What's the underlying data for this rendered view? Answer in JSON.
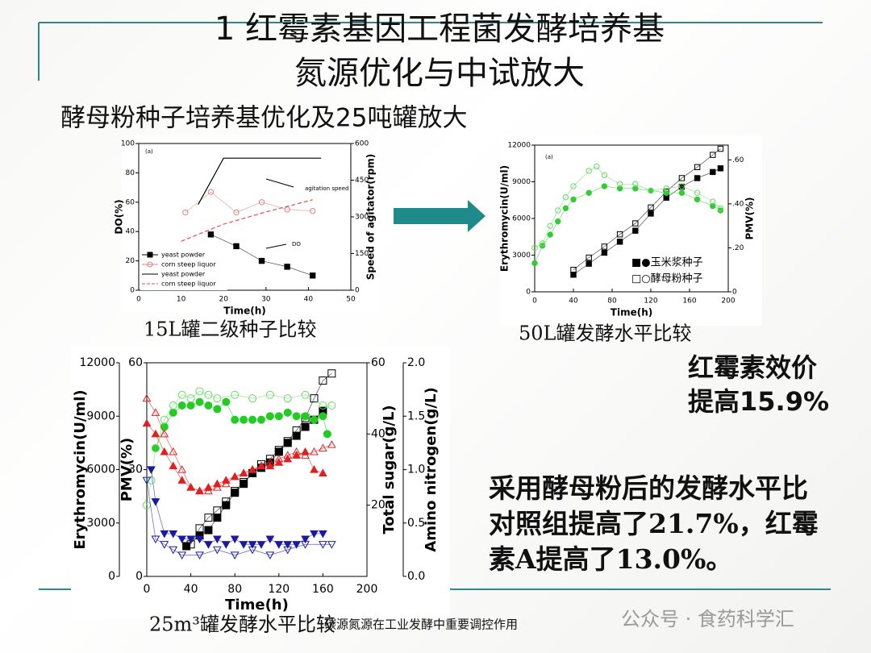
{
  "title_lines": [
    "1 红霉素基因工程菌发酵培养基",
    "氮源优化与中试放大"
  ],
  "subtitle": "酵母粉种子培养基优化及25吨罐放大",
  "captions": [
    "15L罐二级种子比较",
    "50L罐发酵水平比较",
    "25m³罐发酵水平比较"
  ],
  "highlight_lines": [
    "红霉素效价",
    "提高15.9%"
  ],
  "conclusion": "采用酵母粉后的发酵水平比对照组提高了21.7%，红霉素A提高了13.0%。",
  "footer": "碳源氮源在工业发酵中重要调控作用",
  "watermark": "公众号 · 食药科学汇",
  "chart_data": [
    {
      "type": "scatter",
      "annotations": [
        "(a)",
        "agitation speed",
        "DO"
      ],
      "xlabel": "Time(h)",
      "xlim": [
        0,
        50
      ],
      "xticks": [
        0,
        10,
        20,
        30,
        40,
        50
      ],
      "axes": [
        {
          "label": "DO(%)",
          "lim": [
            0,
            100
          ],
          "ticks": [
            0,
            20,
            40,
            60,
            80,
            100
          ]
        },
        {
          "label": "Speed of agitator(rpm)",
          "lim": [
            0,
            600
          ],
          "ticks": [
            0,
            150,
            300,
            450,
            600
          ]
        }
      ],
      "series": [
        {
          "name": "yeast powder",
          "color": "#000000",
          "marker": "square",
          "filled": true,
          "axis": 0,
          "x": [
            17,
            23,
            29,
            35,
            41
          ],
          "values": [
            38,
            30,
            20,
            16,
            10
          ]
        },
        {
          "name": "corn steep liquor",
          "color": "#e08080",
          "marker": "circle",
          "filled": false,
          "axis": 0,
          "x": [
            11,
            17,
            23,
            29,
            35,
            41
          ],
          "values": [
            53,
            67,
            53,
            60,
            55,
            54
          ]
        },
        {
          "name": "yeast powder",
          "color": "#000000",
          "marker": "line",
          "axis": 1,
          "x": [
            14,
            20,
            43
          ],
          "values": [
            350,
            540,
            540
          ]
        },
        {
          "name": "corn steep liquor",
          "color": "#e05050",
          "marker": "dashed",
          "axis": 1,
          "x": [
            10,
            20,
            30,
            41
          ],
          "values": [
            200,
            270,
            320,
            370
          ]
        }
      ]
    },
    {
      "type": "scatter",
      "annotations": [
        "(a)"
      ],
      "legend": [
        "■●玉米浆种子",
        "□○酵母粉种子"
      ],
      "xlabel": "Time(h)",
      "xlim": [
        0,
        200
      ],
      "xticks": [
        0,
        40,
        80,
        120,
        160,
        200
      ],
      "axes": [
        {
          "label": "Erythromycin(U/ml)",
          "lim": [
            0,
            12000
          ],
          "ticks": [
            0,
            3000,
            6000,
            9000,
            12000
          ]
        },
        {
          "label": "PMV(%)",
          "lim": [
            0,
            0.667
          ],
          "ticks": [
            0,
            {
              "value": 0.2,
              "label": ".20"
            },
            {
              "value": 0.4,
              "label": ".40"
            },
            {
              "value": 0.6,
              "label": ".60"
            }
          ]
        }
      ],
      "series": [
        {
          "color": "#000000",
          "marker": "square",
          "filled": true,
          "axis": 0,
          "x": [
            40,
            56,
            72,
            88,
            104,
            120,
            136,
            152,
            168,
            184,
            192
          ],
          "values": [
            1400,
            2300,
            3200,
            4100,
            5000,
            6400,
            7700,
            8600,
            9300,
            9800,
            10100
          ]
        },
        {
          "color": "#000000",
          "marker": "square",
          "filled": false,
          "axis": 0,
          "x": [
            40,
            56,
            72,
            88,
            104,
            120,
            136,
            152,
            168,
            184,
            192
          ],
          "values": [
            1800,
            2800,
            3700,
            4700,
            5600,
            6900,
            8200,
            9300,
            10200,
            11200,
            11700
          ]
        },
        {
          "color": "#33cc33",
          "marker": "circle",
          "filled": true,
          "axis": 1,
          "x": [
            0,
            8,
            16,
            24,
            32,
            40,
            56,
            72,
            88,
            104,
            120,
            136,
            152,
            168,
            184,
            192
          ],
          "values": [
            0.13,
            0.21,
            0.26,
            0.32,
            0.38,
            0.42,
            0.45,
            0.48,
            0.47,
            0.47,
            0.46,
            0.45,
            0.45,
            0.42,
            0.39,
            0.37
          ]
        },
        {
          "color": "#66dd66",
          "marker": "circle",
          "filled": false,
          "axis": 1,
          "x": [
            0,
            8,
            16,
            24,
            32,
            40,
            56,
            64,
            72,
            88,
            104,
            120,
            136,
            152,
            168,
            184,
            192
          ],
          "values": [
            0.2,
            0.22,
            0.3,
            0.37,
            0.43,
            0.48,
            0.55,
            0.57,
            0.53,
            0.49,
            0.49,
            0.46,
            0.47,
            0.48,
            0.45,
            0.41,
            0.38
          ]
        }
      ]
    },
    {
      "type": "scatter",
      "xlabel": "Time(h)",
      "xlim": [
        0,
        200
      ],
      "xticks": [
        0,
        40,
        80,
        120,
        160,
        200
      ],
      "axes": [
        {
          "label": "Erythromycin(U/ml)",
          "lim": [
            0,
            12000
          ],
          "ticks": [
            0,
            3000,
            6000,
            9000,
            12000
          ]
        },
        {
          "label": "PMV(%)",
          "lim": [
            0,
            60
          ],
          "ticks": [
            0,
            30,
            60
          ]
        },
        {
          "label": "Total sugar(g/L)",
          "lim": [
            0,
            60
          ],
          "ticks": [
            20,
            40,
            60
          ]
        },
        {
          "label": "Amino nitrogen(g/L)",
          "lim": [
            0,
            2
          ],
          "ticks": [
            {
              "value": 0,
              "label": "0.0"
            },
            0.5,
            {
              "value": 1,
              "label": "1.0"
            },
            1.5,
            {
              "value": 2,
              "label": "2.0"
            }
          ]
        }
      ],
      "series": [
        {
          "color": "#000000",
          "marker": "square",
          "filled": true,
          "axis": 0,
          "x": [
            36,
            48,
            56,
            64,
            72,
            80,
            88,
            96,
            104,
            112,
            120,
            128,
            136,
            144,
            152,
            160
          ],
          "values": [
            1700,
            2300,
            2600,
            3300,
            4000,
            4700,
            5200,
            5800,
            6100,
            6400,
            7000,
            7500,
            7900,
            8400,
            8800,
            9300
          ]
        },
        {
          "color": "#000000",
          "marker": "square",
          "filled": false,
          "axis": 0,
          "x": [
            40,
            48,
            56,
            64,
            72,
            80,
            88,
            96,
            104,
            112,
            120,
            128,
            136,
            144,
            152,
            160,
            168
          ],
          "values": [
            1800,
            2700,
            3300,
            3700,
            4200,
            4800,
            5300,
            5800,
            6300,
            6600,
            7100,
            7600,
            8200,
            8900,
            10000,
            11000,
            11400
          ]
        },
        {
          "color": "#22cc22",
          "marker": "circle",
          "filled": true,
          "axis": 1,
          "x": [
            8,
            16,
            24,
            32,
            40,
            48,
            56,
            64,
            72,
            80,
            88,
            96,
            104,
            112,
            120,
            128,
            136,
            144,
            152,
            160,
            164
          ],
          "values": [
            36,
            42,
            46,
            48,
            48,
            49,
            48,
            47,
            49,
            44,
            44,
            44,
            44,
            45,
            45,
            46,
            45,
            45,
            44,
            45,
            40
          ]
        },
        {
          "color": "#66dd66",
          "marker": "circle",
          "filled": false,
          "axis": 1,
          "x": [
            0,
            4,
            8,
            16,
            24,
            32,
            40,
            48,
            56,
            64,
            80,
            96,
            112,
            128,
            144,
            160,
            168
          ],
          "values": [
            20,
            27,
            36,
            44,
            48,
            51,
            50,
            52,
            51,
            50,
            51,
            50,
            51,
            50,
            51,
            48,
            48
          ]
        },
        {
          "color": "#e02020",
          "marker": "triangle",
          "filled": true,
          "axis": 2,
          "x": [
            0,
            8,
            16,
            24,
            32,
            40,
            48,
            56,
            64,
            72,
            80,
            88,
            96,
            104,
            112,
            120,
            128,
            136,
            144,
            152,
            160
          ],
          "values": [
            43,
            40,
            35,
            31,
            27,
            25,
            24,
            25,
            26,
            27,
            28,
            29,
            30,
            31,
            31,
            32,
            33,
            34,
            35,
            30,
            29
          ]
        },
        {
          "color": "#e02020",
          "marker": "triangle",
          "filled": false,
          "axis": 2,
          "x": [
            0,
            8,
            16,
            24,
            32,
            40,
            48,
            56,
            64,
            72,
            80,
            88,
            96,
            104,
            112,
            120,
            128,
            136,
            144,
            152,
            160,
            168
          ],
          "values": [
            50,
            46,
            40,
            35,
            30,
            25,
            24,
            24,
            25,
            26,
            28,
            29,
            30,
            31,
            32,
            33,
            34,
            35,
            34,
            35,
            36,
            37
          ]
        },
        {
          "color": "#1a1aa0",
          "marker": "triangle-down",
          "filled": true,
          "axis": 3,
          "x": [
            4,
            8,
            16,
            24,
            32,
            40,
            48,
            56,
            64,
            72,
            80,
            88,
            96,
            104,
            112,
            120,
            128,
            136,
            144,
            152,
            160
          ],
          "values": [
            1.0,
            0.7,
            0.4,
            0.4,
            0.35,
            0.35,
            0.35,
            0.3,
            0.35,
            0.3,
            0.35,
            0.3,
            0.3,
            0.3,
            0.35,
            0.3,
            0.3,
            0.3,
            0.35,
            0.4,
            0.4
          ]
        },
        {
          "color": "#1a1aa0",
          "marker": "triangle-down",
          "filled": false,
          "axis": 3,
          "x": [
            0,
            8,
            16,
            24,
            32,
            48,
            64,
            80,
            96,
            112,
            128,
            144,
            160,
            168
          ],
          "values": [
            0.9,
            0.35,
            0.3,
            0.25,
            0.2,
            0.2,
            0.25,
            0.2,
            0.25,
            0.2,
            0.25,
            0.3,
            0.3,
            0.3
          ]
        }
      ]
    }
  ]
}
